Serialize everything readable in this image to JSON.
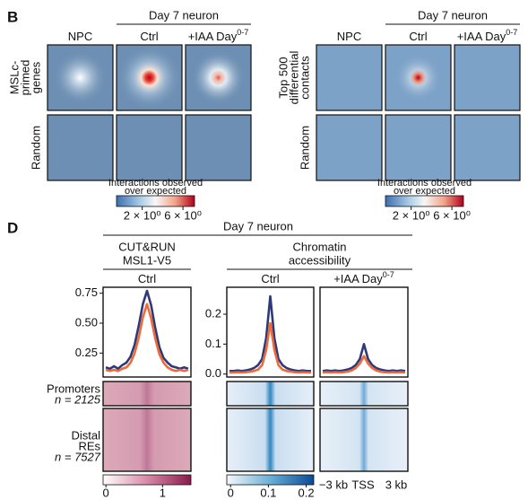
{
  "panel_b": {
    "label": "B",
    "groups": [
      {
        "header": "Day 7 neuron",
        "columns": [
          {
            "text": "NPC"
          },
          {
            "text": "Ctrl"
          },
          {
            "text": "+IAA Day",
            "sup": "0-7"
          }
        ],
        "rows": [
          {
            "lines": [
              "MSLc-",
              "primed",
              "genes"
            ]
          },
          {
            "lines": [
              "Random"
            ]
          }
        ],
        "colorbar": {
          "title": [
            "Interactions observed",
            "over expected"
          ],
          "clim": [
            1,
            8.2
          ],
          "log": true,
          "ticks": [
            {
              "value": 2,
              "label": "2 × 10⁰"
            },
            {
              "value": 6,
              "label": "6 × 10⁰"
            }
          ]
        }
      },
      {
        "header": "Day 7 neuron",
        "columns": [
          {
            "text": "NPC"
          },
          {
            "text": "Ctrl"
          },
          {
            "text": "+IAA Day",
            "sup": "0-7"
          }
        ],
        "rows": [
          {
            "lines": [
              "Top 500",
              "differential",
              "contacts"
            ]
          },
          {
            "lines": [
              "Random"
            ]
          }
        ],
        "colorbar": {
          "title": [
            "Interactions observed",
            "over expected"
          ],
          "clim": [
            1,
            8.2
          ],
          "log": true,
          "ticks": [
            {
              "value": 2,
              "label": "2 × 10⁰"
            },
            {
              "value": 6,
              "label": "6 × 10⁰"
            }
          ]
        }
      }
    ]
  },
  "panel_d": {
    "label": "D",
    "header": "Day 7 neuron",
    "sections": [
      {
        "title": [
          "CUT&RUN",
          "MSL1-V5"
        ]
      },
      {
        "title": [
          "Chromatin",
          "accessibility"
        ]
      }
    ],
    "profiles": [
      {
        "column": {
          "text": "Ctrl"
        },
        "ylim": [
          0.05,
          0.8
        ],
        "yticks": [
          0.25,
          {
            "value": 0.5,
            "label": "0.50"
          },
          0.75
        ],
        "series": [
          {
            "color": "#2e3a78",
            "values": [
              0.13,
              0.12,
              0.14,
              0.12,
              0.15,
              0.17,
              0.22,
              0.32,
              0.48,
              0.66,
              0.77,
              0.65,
              0.46,
              0.3,
              0.21,
              0.17,
              0.14,
              0.13,
              0.12,
              0.13,
              0.12
            ]
          },
          {
            "color": "#ee6a3a",
            "values": [
              0.11,
              0.1,
              0.11,
              0.1,
              0.12,
              0.13,
              0.17,
              0.25,
              0.38,
              0.55,
              0.66,
              0.54,
              0.37,
              0.24,
              0.17,
              0.13,
              0.11,
              0.1,
              0.11,
              0.1,
              0.11
            ]
          }
        ]
      },
      {
        "column": {
          "text": "Ctrl"
        },
        "ylim": [
          -0.01,
          0.29
        ],
        "yticks": [
          {
            "value": 0,
            "label": "0.0"
          },
          0.1,
          0.2
        ],
        "series": [
          {
            "color": "#2e3a78",
            "values": [
              0.01,
              0.01,
              0.012,
              0.01,
              0.012,
              0.015,
              0.02,
              0.03,
              0.05,
              0.12,
              0.26,
              0.12,
              0.05,
              0.03,
              0.02,
              0.015,
              0.012,
              0.01,
              0.012,
              0.01,
              0.01
            ]
          },
          {
            "color": "#ee6a3a",
            "values": [
              0.005,
              0.005,
              0.006,
              0.005,
              0.006,
              0.008,
              0.01,
              0.015,
              0.03,
              0.08,
              0.17,
              0.08,
              0.03,
              0.015,
              0.01,
              0.008,
              0.006,
              0.005,
              0.006,
              0.005,
              0.005
            ]
          }
        ]
      },
      {
        "column": {
          "text": "+IAA Day",
          "sup": "0-7"
        },
        "ylim": [
          -0.01,
          0.29
        ],
        "series": [
          {
            "color": "#2e3a78",
            "values": [
              0.01,
              0.012,
              0.01,
              0.012,
              0.01,
              0.012,
              0.015,
              0.02,
              0.03,
              0.05,
              0.1,
              0.05,
              0.03,
              0.02,
              0.015,
              0.012,
              0.01,
              0.012,
              0.01,
              0.012,
              0.01
            ]
          },
          {
            "color": "#ee6a3a",
            "values": [
              0.005,
              0.006,
              0.005,
              0.006,
              0.005,
              0.006,
              0.008,
              0.012,
              0.02,
              0.035,
              0.06,
              0.035,
              0.02,
              0.012,
              0.008,
              0.006,
              0.005,
              0.006,
              0.005,
              0.006,
              0.005
            ]
          }
        ]
      }
    ],
    "row_labels": [
      {
        "lines": [
          "Promoters"
        ],
        "n": "n = 2125",
        "color": "#2e3a78"
      },
      {
        "lines": [
          "Distal",
          "REs"
        ],
        "n": "n = 7527",
        "color": "#ee6a3a"
      }
    ],
    "colorbars": [
      {
        "clim": [
          -0.05,
          1.5
        ],
        "ticks": [
          0,
          1
        ]
      },
      {
        "clim": [
          -0.01,
          0.22
        ],
        "ticks": [
          0,
          0.1,
          0.2
        ]
      }
    ],
    "x_labels": [
      "−3 kb",
      "TSS",
      "3 kb"
    ]
  }
}
